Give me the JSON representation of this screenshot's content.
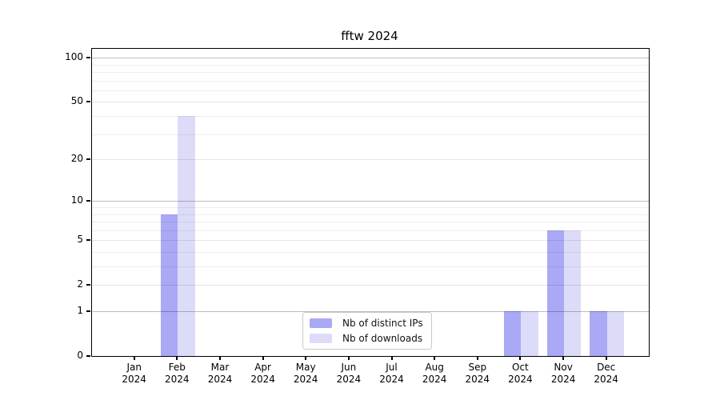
{
  "chart_data": {
    "type": "bar",
    "title": "fftw 2024",
    "yscale": "log1p",
    "ylim": [
      0,
      115
    ],
    "grid": "horizontal",
    "legend_position": "inside-bottom-center",
    "categories": [
      "Jan",
      "Feb",
      "Mar",
      "Apr",
      "May",
      "Jun",
      "Jul",
      "Aug",
      "Sep",
      "Oct",
      "Nov",
      "Dec"
    ],
    "year_label": "2024",
    "yticks_labeled": [
      0,
      1,
      2,
      5,
      10,
      20,
      50,
      100
    ],
    "yticks_decade": [
      1,
      10,
      100
    ],
    "yticks_minor": [
      3,
      4,
      6,
      7,
      8,
      9,
      30,
      40,
      60,
      70,
      80,
      90
    ],
    "series": [
      {
        "name": "Nb of distinct IPs",
        "color": "#a9a9f5",
        "values": [
          0,
          8,
          0,
          0,
          0,
          0,
          0,
          0,
          0,
          1,
          6,
          1
        ]
      },
      {
        "name": "Nb of downloads",
        "color": "#dcdcf9",
        "values": [
          0,
          40,
          0,
          0,
          0,
          0,
          0,
          0,
          0,
          1,
          6,
          1
        ]
      }
    ]
  }
}
